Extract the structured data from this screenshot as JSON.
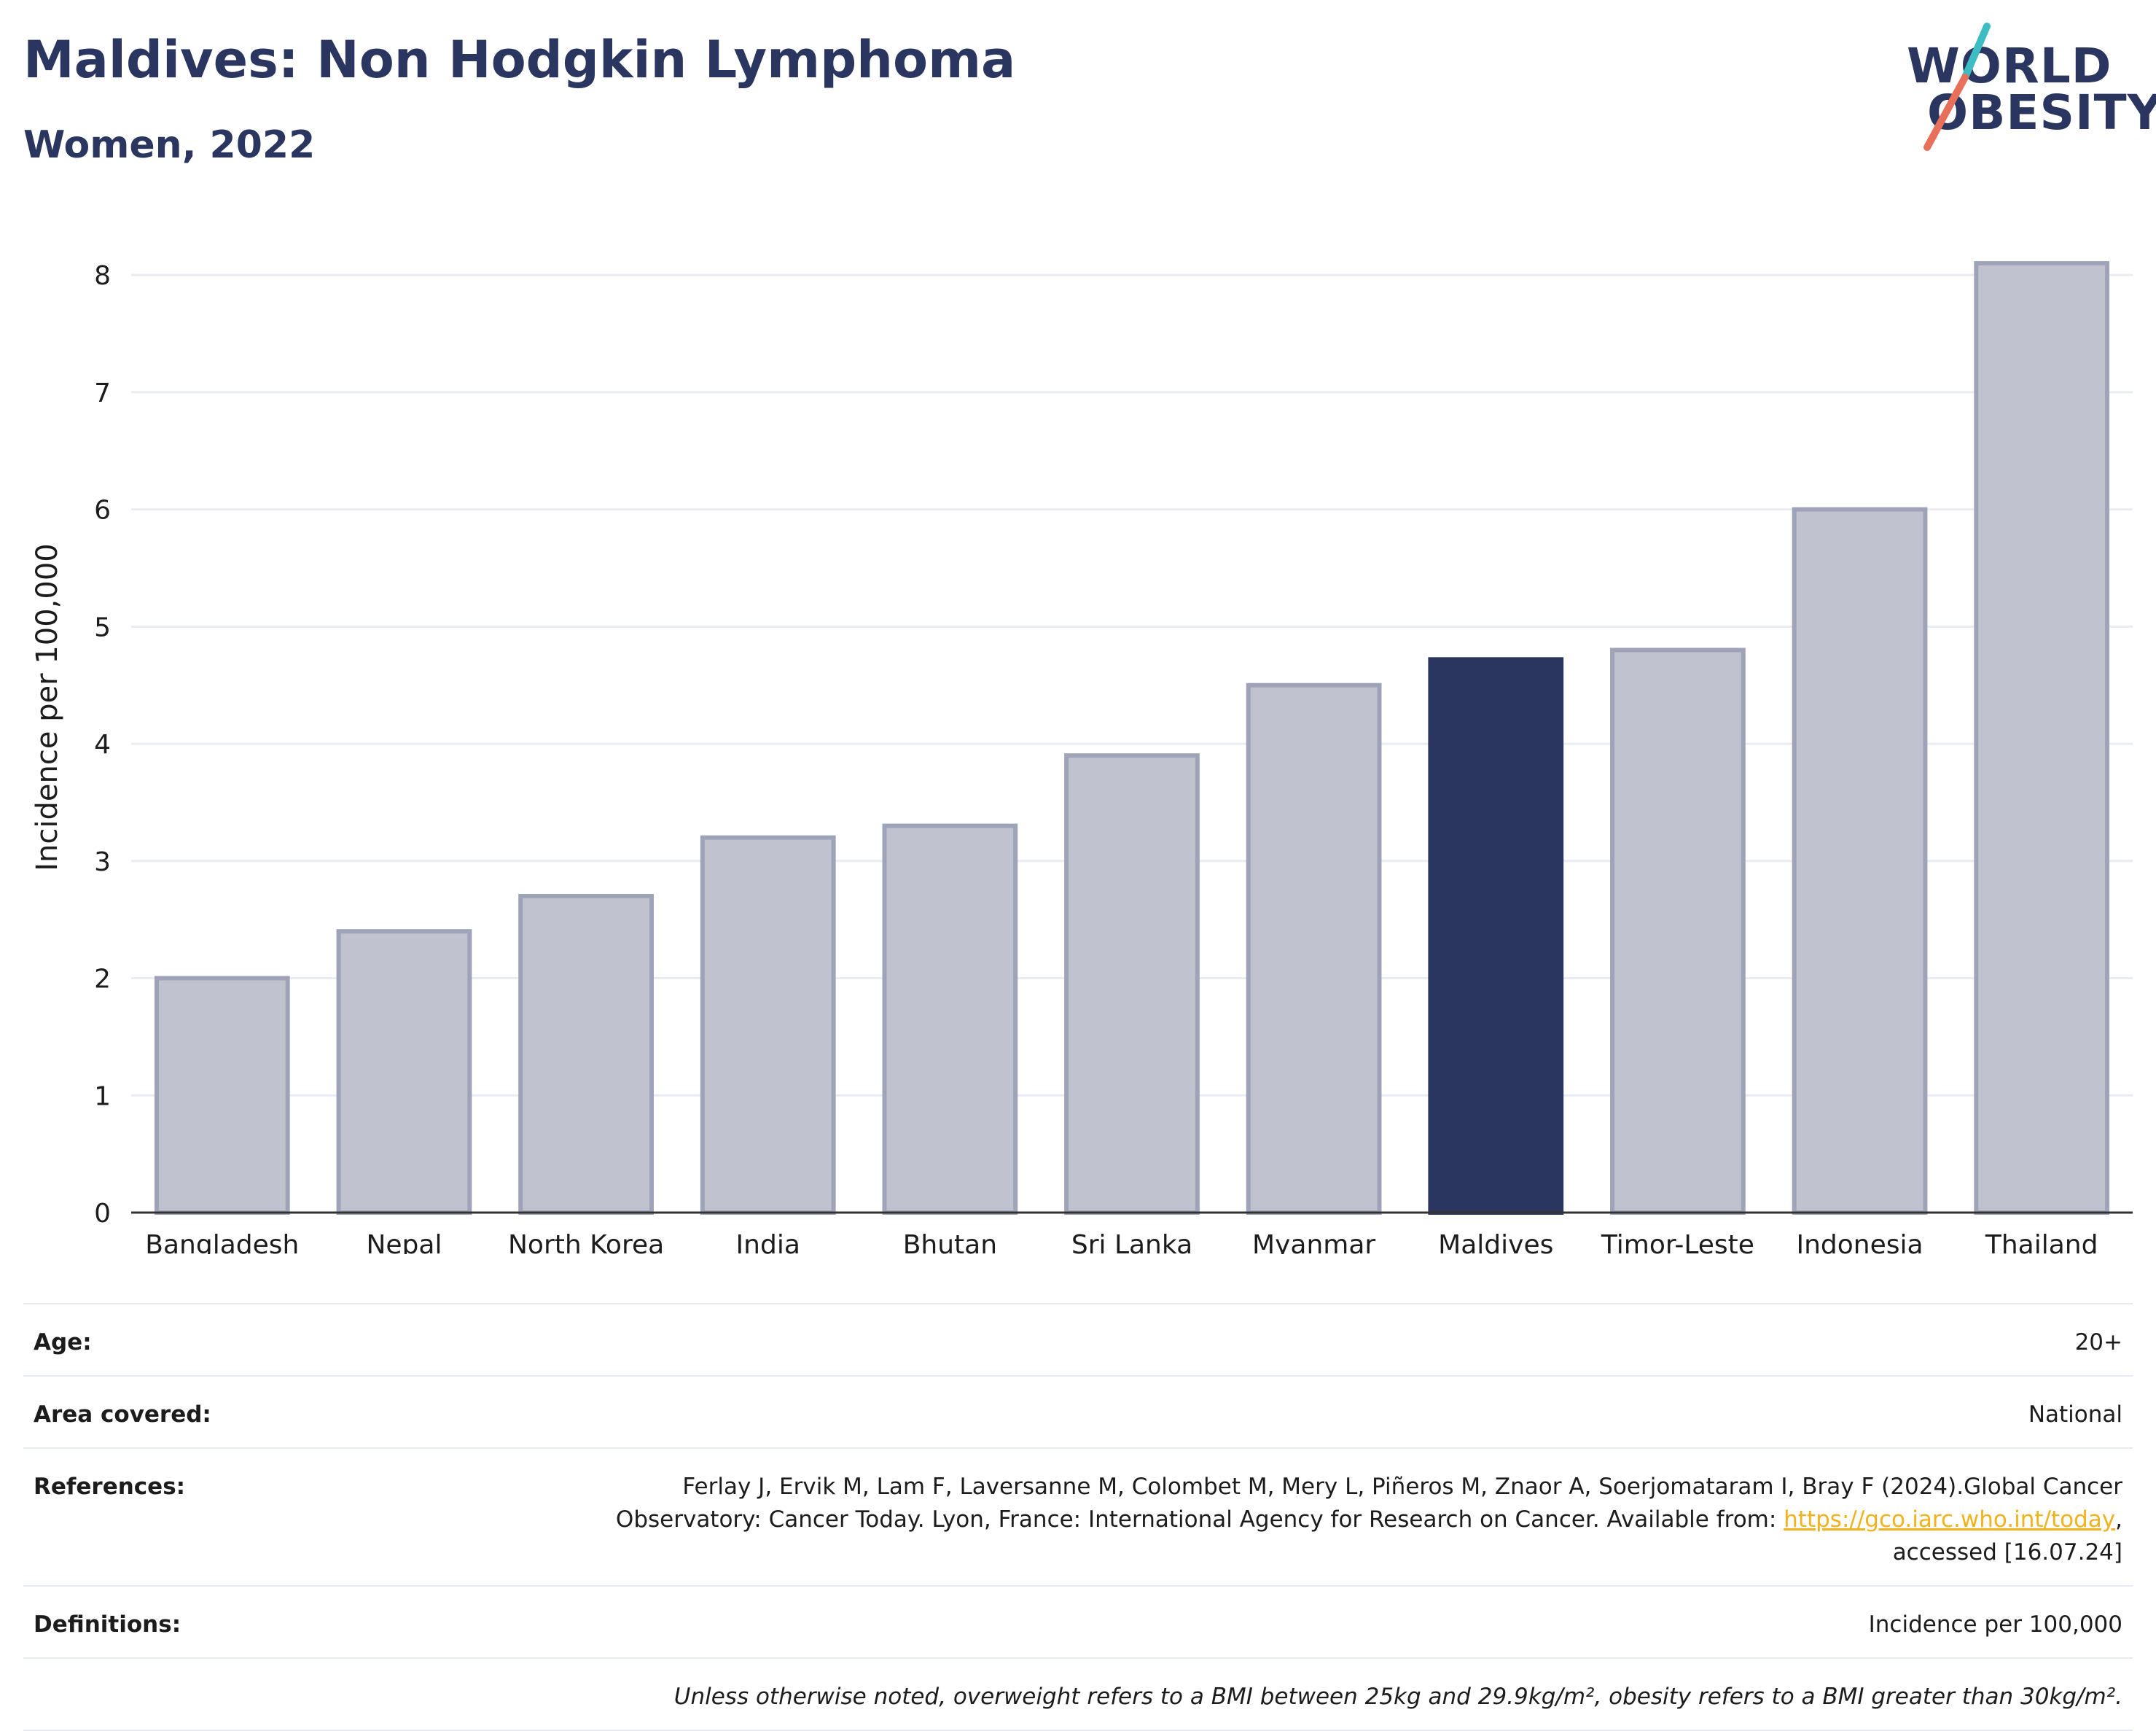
{
  "header": {
    "title": "Maldives: Non Hodgkin Lymphoma",
    "subtitle": "Women, 2022"
  },
  "logo": {
    "line1": "WORLD",
    "line2": "OBESITY",
    "slash_colors": [
      "#3dbcc2",
      "#e8705a"
    ]
  },
  "colors": {
    "highlight_bar": "#2a3560",
    "other_bar_fill": "#c0c3cf",
    "other_bar_stroke": "#9ea3b8",
    "gridline": "#e9ecf2",
    "axis": "#333333",
    "link": "#f2b21c"
  },
  "chart_data": {
    "type": "bar",
    "title": "Maldives: Non Hodgkin Lymphoma",
    "subtitle": "Women, 2022",
    "xlabel": "",
    "ylabel": "Incidence per 100,000",
    "ylim": [
      0,
      8.2
    ],
    "yticks": [
      0,
      1,
      2,
      3,
      4,
      5,
      6,
      7,
      8
    ],
    "grid": true,
    "categories": [
      "Bangladesh",
      "Nepal",
      "North Korea",
      "India",
      "Bhutan",
      "Sri Lanka",
      "Myanmar",
      "Maldives",
      "Timor-Leste",
      "Indonesia",
      "Thailand"
    ],
    "values": [
      2.0,
      2.4,
      2.7,
      3.2,
      3.3,
      3.9,
      4.5,
      4.72,
      4.8,
      6.0,
      8.1
    ],
    "highlight": "Maldives"
  },
  "info": {
    "age_label": "Age:",
    "age_value": "20+",
    "area_label": "Area covered:",
    "area_value": "National",
    "references_label": "References:",
    "references_line1": "Ferlay J, Ervik M, Lam F, Laversanne M, Colombet M, Mery L, Piñeros M, Znaor A, Soerjomataram I, Bray F (2024).Global Cancer",
    "references_line2_pre": "Observatory: Cancer Today. Lyon, France: International Agency for Research on Cancer. Available from: ",
    "references_link": "https://gco.iarc.who.int/today",
    "references_line2_post": ",",
    "references_line3": "accessed [16.07.24]",
    "definitions_label": "Definitions:",
    "definitions_value": "Incidence per 100,000",
    "note": "Unless otherwise noted, overweight refers to a BMI between 25kg and 29.9kg/m², obesity refers to a BMI greater than 30kg/m²."
  }
}
